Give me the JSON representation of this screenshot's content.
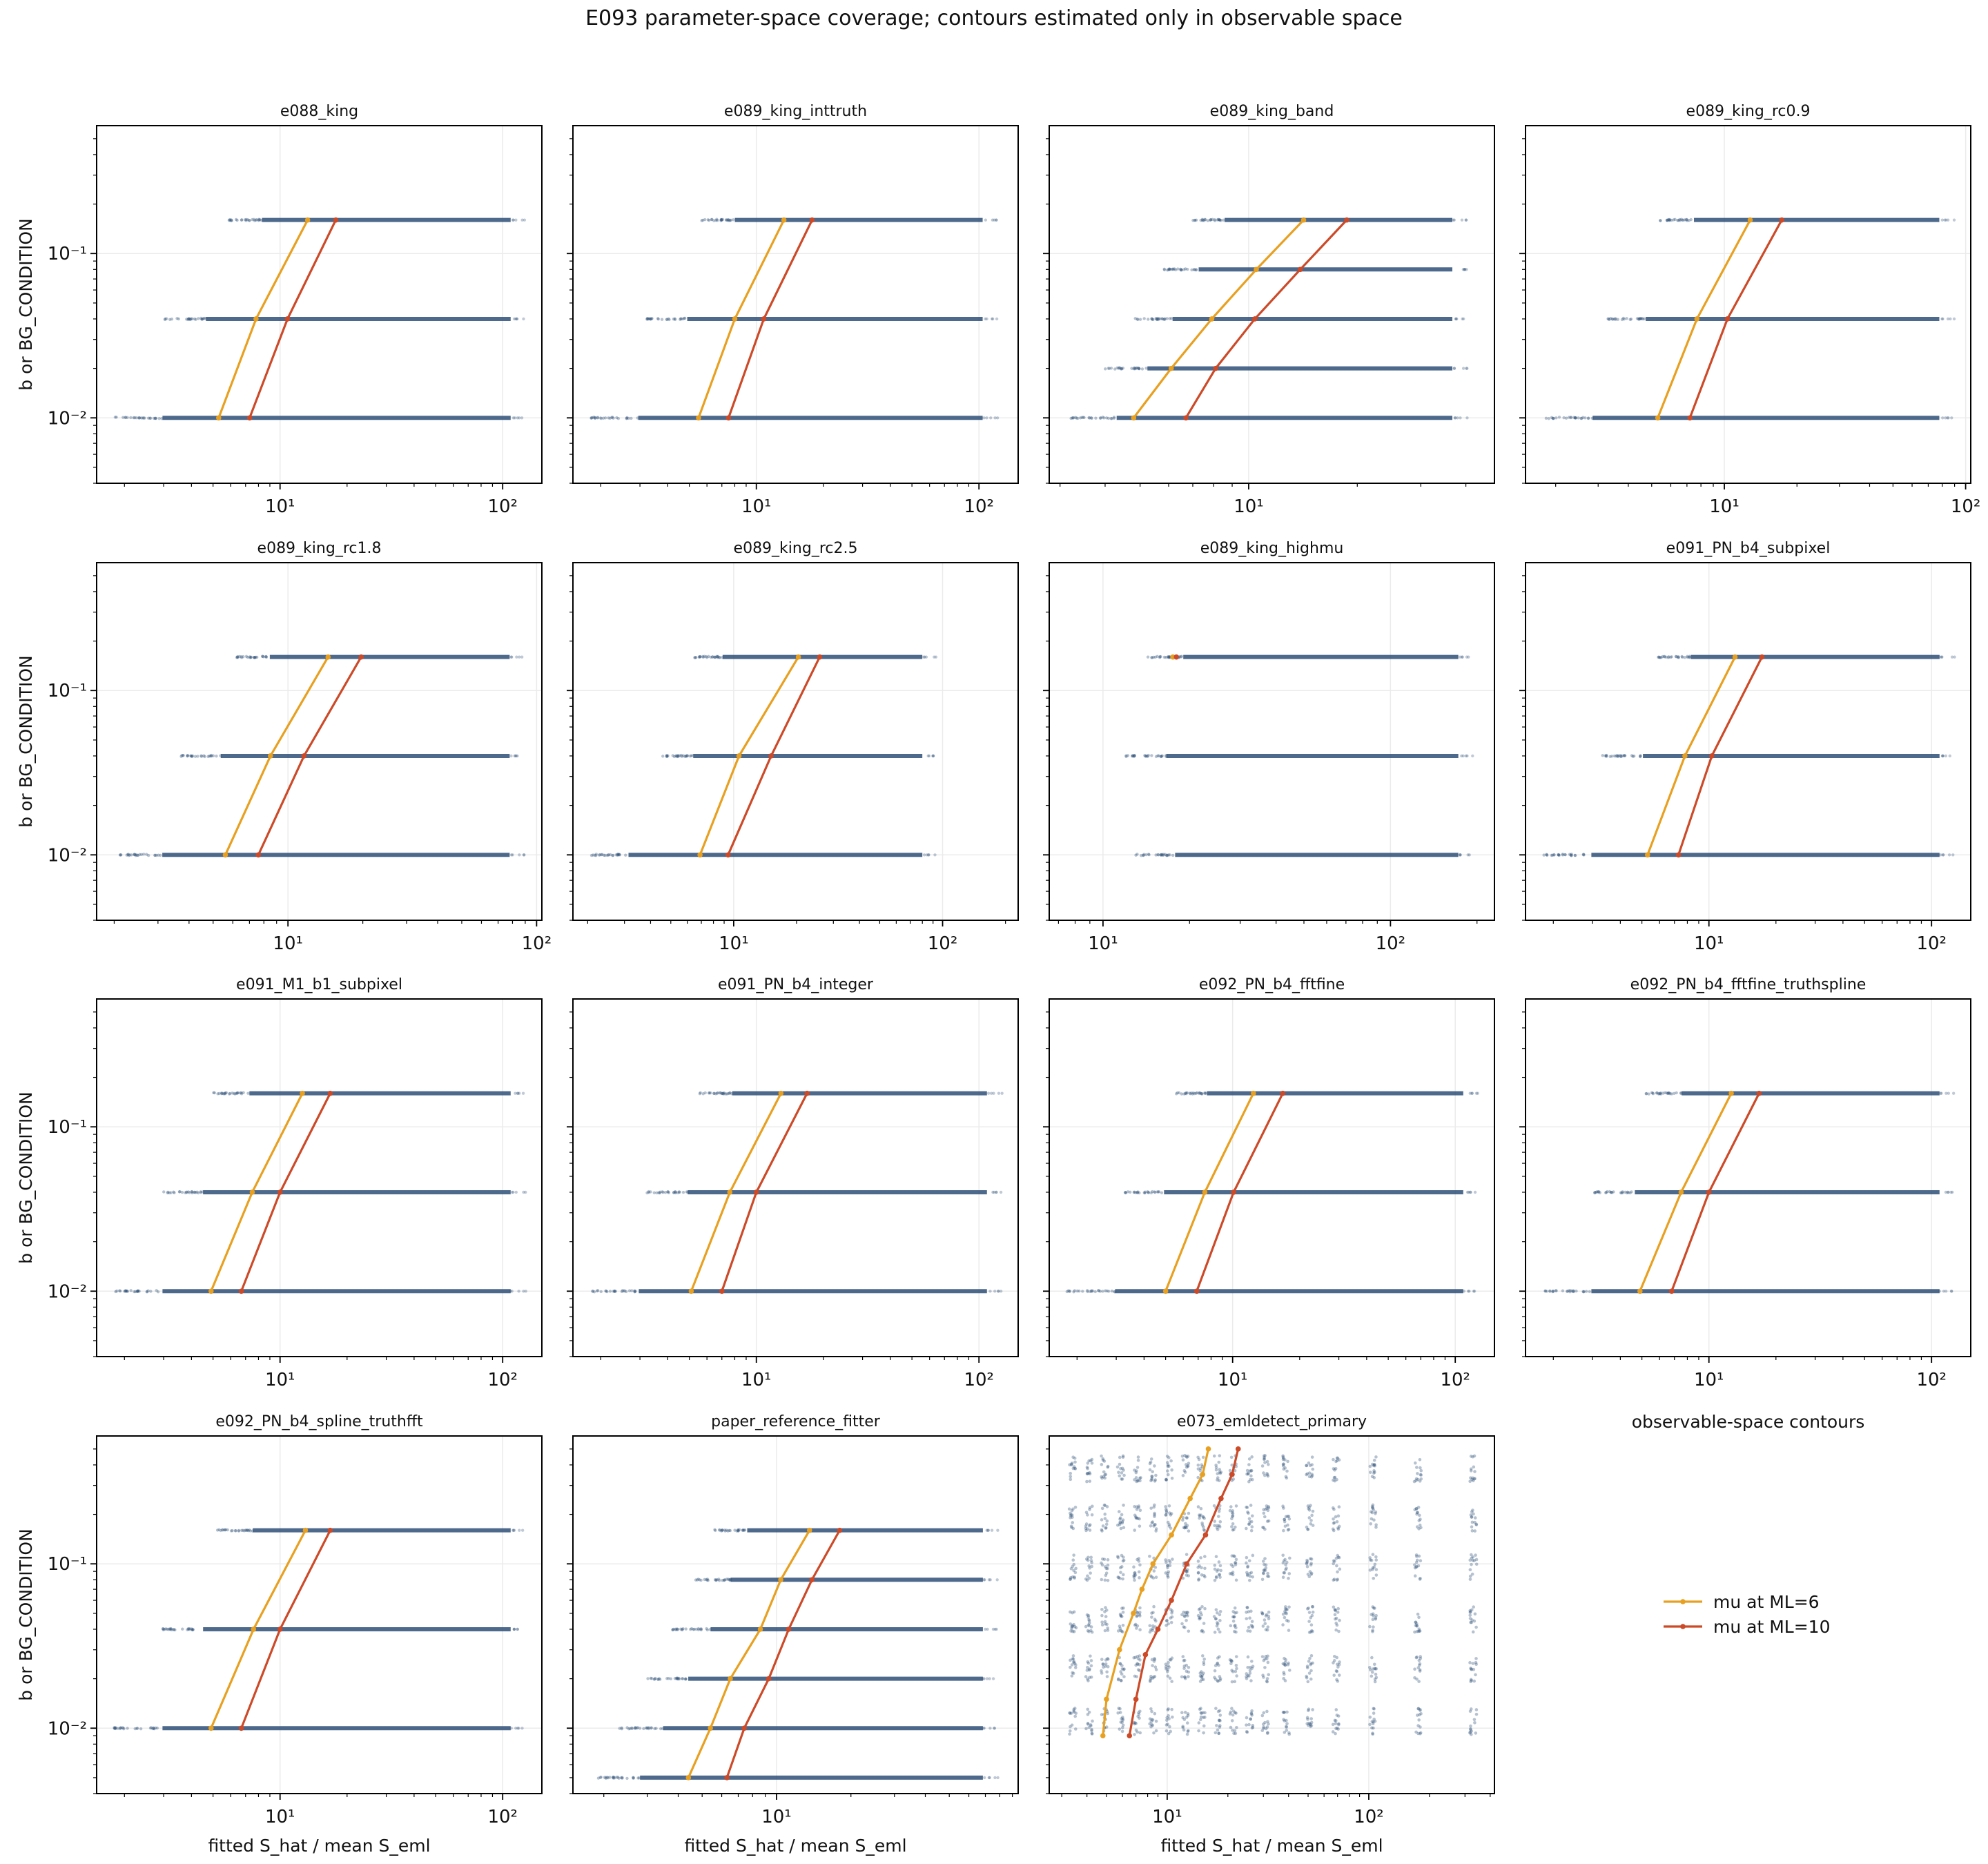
{
  "figure": {
    "title": "E093 parameter-space coverage; contours estimated only in observable space",
    "ylabel": "b or BG_CONDITION",
    "xlabel": "fitted S_hat / mean S_eml",
    "legend_panel_title": "observable-space contours"
  },
  "colors": {
    "points": "#2f4f78",
    "ml6": "#e8a020",
    "ml10": "#cc4a28",
    "grid": "#ebebeb"
  },
  "legend": [
    {
      "label": "mu at ML=6",
      "color": "#e8a020"
    },
    {
      "label": "mu at ML=10",
      "color": "#cc4a28"
    }
  ],
  "y_ticks": [
    {
      "value": 0.01,
      "label": "10⁻²"
    },
    {
      "value": 0.1,
      "label": "10⁻¹"
    }
  ],
  "chart_data": [
    {
      "type": "scatter",
      "title": "e088_king",
      "xlim": [
        1.5,
        150
      ],
      "ylim": [
        0.004,
        0.6
      ],
      "log_x": true,
      "log_y": true,
      "xticks": [
        {
          "value": 10,
          "label": "10¹"
        },
        {
          "value": 100,
          "label": "10²"
        }
      ],
      "bands": [
        {
          "y": 0.01,
          "x": [
            1.8,
            115
          ]
        },
        {
          "y": 0.04,
          "x": [
            3.0,
            115
          ]
        },
        {
          "y": 0.16,
          "x": [
            5.8,
            115
          ]
        }
      ],
      "series": [
        {
          "name": "mu at ML=6",
          "x": [
            5.3,
            7.8,
            13.3
          ],
          "y": [
            0.01,
            0.04,
            0.16
          ]
        },
        {
          "name": "mu at ML=10",
          "x": [
            7.3,
            10.8,
            17.8
          ],
          "y": [
            0.01,
            0.04,
            0.16
          ]
        }
      ]
    },
    {
      "type": "scatter",
      "title": "e089_king_inttruth",
      "xlim": [
        1.5,
        150
      ],
      "ylim": [
        0.004,
        0.6
      ],
      "log_x": true,
      "log_y": true,
      "xticks": [
        {
          "value": 10,
          "label": "10¹"
        },
        {
          "value": 100,
          "label": "10²"
        }
      ],
      "bands": [
        {
          "y": 0.01,
          "x": [
            1.8,
            110
          ]
        },
        {
          "y": 0.04,
          "x": [
            3.2,
            110
          ]
        },
        {
          "y": 0.16,
          "x": [
            5.6,
            110
          ]
        }
      ],
      "series": [
        {
          "name": "mu at ML=6",
          "x": [
            5.5,
            8.0,
            13.3
          ],
          "y": [
            0.01,
            0.04,
            0.16
          ]
        },
        {
          "name": "mu at ML=10",
          "x": [
            7.5,
            10.8,
            17.8
          ],
          "y": [
            0.01,
            0.04,
            0.16
          ]
        }
      ]
    },
    {
      "type": "scatter",
      "title": "e089_king_band",
      "xlim": [
        2.8,
        48
      ],
      "ylim": [
        0.004,
        0.6
      ],
      "log_x": true,
      "log_y": true,
      "xticks": [
        {
          "value": 10,
          "label": "10¹"
        }
      ],
      "bands": [
        {
          "y": 0.01,
          "x": [
            3.2,
            38
          ]
        },
        {
          "y": 0.02,
          "x": [
            4.0,
            38
          ]
        },
        {
          "y": 0.04,
          "x": [
            4.8,
            38
          ]
        },
        {
          "y": 0.08,
          "x": [
            5.8,
            38
          ]
        },
        {
          "y": 0.16,
          "x": [
            7.0,
            38
          ]
        }
      ],
      "series": [
        {
          "name": "mu at ML=6",
          "x": [
            4.8,
            6.1,
            7.9,
            10.5,
            14.2
          ],
          "y": [
            0.01,
            0.02,
            0.04,
            0.08,
            0.16
          ]
        },
        {
          "name": "mu at ML=10",
          "x": [
            6.7,
            8.1,
            10.4,
            13.9,
            18.7
          ],
          "y": [
            0.01,
            0.02,
            0.04,
            0.08,
            0.16
          ]
        }
      ]
    },
    {
      "type": "scatter",
      "title": "e089_king_rc0.9",
      "xlim": [
        1.5,
        105
      ],
      "ylim": [
        0.004,
        0.6
      ],
      "log_x": true,
      "log_y": true,
      "xticks": [
        {
          "value": 10,
          "label": "10¹"
        },
        {
          "value": 100,
          "label": "10²"
        }
      ],
      "bands": [
        {
          "y": 0.01,
          "x": [
            1.8,
            82
          ]
        },
        {
          "y": 0.04,
          "x": [
            3.2,
            82
          ]
        },
        {
          "y": 0.16,
          "x": [
            5.4,
            82
          ]
        }
      ],
      "series": [
        {
          "name": "mu at ML=6",
          "x": [
            5.3,
            7.7,
            12.8
          ],
          "y": [
            0.01,
            0.04,
            0.16
          ]
        },
        {
          "name": "mu at ML=10",
          "x": [
            7.2,
            10.3,
            17.3
          ],
          "y": [
            0.01,
            0.04,
            0.16
          ]
        }
      ]
    },
    {
      "type": "scatter",
      "title": "e089_king_rc1.8",
      "xlim": [
        1.7,
        105
      ],
      "ylim": [
        0.004,
        0.6
      ],
      "log_x": true,
      "log_y": true,
      "xticks": [
        {
          "value": 10,
          "label": "10¹"
        },
        {
          "value": 100,
          "label": "10²"
        }
      ],
      "bands": [
        {
          "y": 0.01,
          "x": [
            2.0,
            82
          ]
        },
        {
          "y": 0.04,
          "x": [
            3.7,
            82
          ]
        },
        {
          "y": 0.16,
          "x": [
            6.2,
            82
          ]
        }
      ],
      "series": [
        {
          "name": "mu at ML=6",
          "x": [
            5.6,
            8.5,
            14.5
          ],
          "y": [
            0.01,
            0.04,
            0.16
          ]
        },
        {
          "name": "mu at ML=10",
          "x": [
            7.6,
            11.6,
            19.7
          ],
          "y": [
            0.01,
            0.04,
            0.16
          ]
        }
      ]
    },
    {
      "type": "scatter",
      "title": "e089_king_rc2.5",
      "xlim": [
        1.7,
        230
      ],
      "ylim": [
        0.004,
        0.6
      ],
      "log_x": true,
      "log_y": true,
      "xticks": [
        {
          "value": 10,
          "label": "10¹"
        },
        {
          "value": 100,
          "label": "10²"
        }
      ],
      "bands": [
        {
          "y": 0.01,
          "x": [
            2.0,
            85
          ]
        },
        {
          "y": 0.04,
          "x": [
            4.5,
            85
          ]
        },
        {
          "y": 0.16,
          "x": [
            6.5,
            85
          ]
        }
      ],
      "series": [
        {
          "name": "mu at ML=6",
          "x": [
            6.9,
            10.6,
            20.4
          ],
          "y": [
            0.01,
            0.04,
            0.16
          ]
        },
        {
          "name": "mu at ML=10",
          "x": [
            9.4,
            15.1,
            25.8
          ],
          "y": [
            0.01,
            0.04,
            0.16
          ]
        }
      ]
    },
    {
      "type": "scatter",
      "title": "e089_king_highmu",
      "xlim": [
        6.5,
        230
      ],
      "ylim": [
        0.004,
        0.6
      ],
      "log_x": true,
      "log_y": true,
      "xticks": [
        {
          "value": 10,
          "label": "10¹"
        },
        {
          "value": 100,
          "label": "10²"
        }
      ],
      "bands": [
        {
          "y": 0.01,
          "x": [
            13,
            180
          ]
        },
        {
          "y": 0.04,
          "x": [
            12,
            180
          ]
        },
        {
          "y": 0.16,
          "x": [
            14,
            180
          ]
        }
      ],
      "series": [
        {
          "name": "mu at ML=6",
          "x": [
            17.5
          ],
          "y": [
            0.16
          ]
        },
        {
          "name": "mu at ML=10",
          "x": [
            18.0
          ],
          "y": [
            0.16
          ]
        }
      ]
    },
    {
      "type": "scatter",
      "title": "e091_PN_b4_subpixel",
      "xlim": [
        1.5,
        150
      ],
      "ylim": [
        0.004,
        0.6
      ],
      "log_x": true,
      "log_y": true,
      "xticks": [
        {
          "value": 10,
          "label": "10¹"
        },
        {
          "value": 100,
          "label": "10²"
        }
      ],
      "bands": [
        {
          "y": 0.01,
          "x": [
            1.8,
            115
          ]
        },
        {
          "y": 0.04,
          "x": [
            3.3,
            115
          ]
        },
        {
          "y": 0.16,
          "x": [
            5.8,
            115
          ]
        }
      ],
      "series": [
        {
          "name": "mu at ML=6",
          "x": [
            5.3,
            7.8,
            13.1
          ],
          "y": [
            0.01,
            0.04,
            0.16
          ]
        },
        {
          "name": "mu at ML=10",
          "x": [
            7.3,
            10.3,
            17.3
          ],
          "y": [
            0.01,
            0.04,
            0.16
          ]
        }
      ]
    },
    {
      "type": "scatter",
      "title": "e091_M1_b1_subpixel",
      "xlim": [
        1.5,
        150
      ],
      "ylim": [
        0.004,
        0.6
      ],
      "log_x": true,
      "log_y": true,
      "xticks": [
        {
          "value": 10,
          "label": "10¹"
        },
        {
          "value": 100,
          "label": "10²"
        }
      ],
      "bands": [
        {
          "y": 0.01,
          "x": [
            1.8,
            115
          ]
        },
        {
          "y": 0.04,
          "x": [
            2.9,
            115
          ]
        },
        {
          "y": 0.16,
          "x": [
            5.0,
            115
          ]
        }
      ],
      "series": [
        {
          "name": "mu at ML=6",
          "x": [
            4.9,
            7.5,
            12.6
          ],
          "y": [
            0.01,
            0.04,
            0.16
          ]
        },
        {
          "name": "mu at ML=10",
          "x": [
            6.7,
            10.0,
            16.8
          ],
          "y": [
            0.01,
            0.04,
            0.16
          ]
        }
      ]
    },
    {
      "type": "scatter",
      "title": "e091_PN_b4_integer",
      "xlim": [
        1.5,
        150
      ],
      "ylim": [
        0.004,
        0.6
      ],
      "log_x": true,
      "log_y": true,
      "xticks": [
        {
          "value": 10,
          "label": "10¹"
        },
        {
          "value": 100,
          "label": "10²"
        }
      ],
      "bands": [
        {
          "y": 0.01,
          "x": [
            1.8,
            115
          ]
        },
        {
          "y": 0.04,
          "x": [
            3.2,
            115
          ]
        },
        {
          "y": 0.16,
          "x": [
            5.4,
            115
          ]
        }
      ],
      "series": [
        {
          "name": "mu at ML=6",
          "x": [
            5.1,
            7.6,
            12.9
          ],
          "y": [
            0.01,
            0.04,
            0.16
          ]
        },
        {
          "name": "mu at ML=10",
          "x": [
            7.0,
            10.0,
            16.9
          ],
          "y": [
            0.01,
            0.04,
            0.16
          ]
        }
      ]
    },
    {
      "type": "scatter",
      "title": "e092_PN_b4_fftfine",
      "xlim": [
        1.5,
        150
      ],
      "ylim": [
        0.004,
        0.6
      ],
      "log_x": true,
      "log_y": true,
      "xticks": [
        {
          "value": 10,
          "label": "10¹"
        },
        {
          "value": 100,
          "label": "10²"
        }
      ],
      "bands": [
        {
          "y": 0.01,
          "x": [
            1.8,
            115
          ]
        },
        {
          "y": 0.04,
          "x": [
            3.2,
            115
          ]
        },
        {
          "y": 0.16,
          "x": [
            5.3,
            115
          ]
        }
      ],
      "series": [
        {
          "name": "mu at ML=6",
          "x": [
            5.0,
            7.5,
            12.4
          ],
          "y": [
            0.01,
            0.04,
            0.16
          ]
        },
        {
          "name": "mu at ML=10",
          "x": [
            6.9,
            10.1,
            16.8
          ],
          "y": [
            0.01,
            0.04,
            0.16
          ]
        }
      ]
    },
    {
      "type": "scatter",
      "title": "e092_PN_b4_fftfine_truthspline",
      "xlim": [
        1.5,
        150
      ],
      "ylim": [
        0.004,
        0.6
      ],
      "log_x": true,
      "log_y": true,
      "xticks": [
        {
          "value": 10,
          "label": "10¹"
        },
        {
          "value": 100,
          "label": "10²"
        }
      ],
      "bands": [
        {
          "y": 0.01,
          "x": [
            1.8,
            115
          ]
        },
        {
          "y": 0.04,
          "x": [
            3.0,
            115
          ]
        },
        {
          "y": 0.16,
          "x": [
            5.2,
            115
          ]
        }
      ],
      "series": [
        {
          "name": "mu at ML=6",
          "x": [
            4.9,
            7.5,
            12.6
          ],
          "y": [
            0.01,
            0.04,
            0.16
          ]
        },
        {
          "name": "mu at ML=10",
          "x": [
            6.8,
            10.0,
            16.8
          ],
          "y": [
            0.01,
            0.04,
            0.16
          ]
        }
      ]
    },
    {
      "type": "scatter",
      "title": "e092_PN_b4_spline_truthfft",
      "xlim": [
        1.5,
        150
      ],
      "ylim": [
        0.004,
        0.6
      ],
      "log_x": true,
      "log_y": true,
      "xticks": [
        {
          "value": 10,
          "label": "10¹"
        },
        {
          "value": 100,
          "label": "10²"
        }
      ],
      "bands": [
        {
          "y": 0.01,
          "x": [
            1.8,
            115
          ]
        },
        {
          "y": 0.04,
          "x": [
            2.9,
            115
          ]
        },
        {
          "y": 0.16,
          "x": [
            5.2,
            115
          ]
        }
      ],
      "series": [
        {
          "name": "mu at ML=6",
          "x": [
            4.9,
            7.6,
            13.0
          ],
          "y": [
            0.01,
            0.04,
            0.16
          ]
        },
        {
          "name": "mu at ML=10",
          "x": [
            6.7,
            10.0,
            16.8
          ],
          "y": [
            0.01,
            0.04,
            0.16
          ]
        }
      ]
    },
    {
      "type": "scatter",
      "title": "paper_reference_fitter",
      "xlim": [
        1.5,
        95
      ],
      "ylim": [
        0.004,
        0.6
      ],
      "log_x": true,
      "log_y": true,
      "xticks": [
        {
          "value": 10,
          "label": "10¹"
        }
      ],
      "bands": [
        {
          "y": 0.005,
          "x": [
            1.8,
            72
          ]
        },
        {
          "y": 0.01,
          "x": [
            2.3,
            72
          ]
        },
        {
          "y": 0.02,
          "x": [
            3.0,
            72
          ]
        },
        {
          "y": 0.04,
          "x": [
            3.8,
            72
          ]
        },
        {
          "y": 0.08,
          "x": [
            4.7,
            72
          ]
        },
        {
          "y": 0.16,
          "x": [
            5.6,
            72
          ]
        }
      ],
      "series": [
        {
          "name": "mu at ML=6",
          "x": [
            4.4,
            5.4,
            6.5,
            8.6,
            10.4,
            13.6
          ],
          "y": [
            0.005,
            0.01,
            0.02,
            0.04,
            0.08,
            0.16
          ]
        },
        {
          "name": "mu at ML=10",
          "x": [
            6.3,
            7.4,
            9.3,
            11.2,
            13.9,
            18.0
          ],
          "y": [
            0.005,
            0.01,
            0.02,
            0.04,
            0.08,
            0.16
          ]
        }
      ]
    },
    {
      "type": "scatter",
      "title": "e073_emldetect_primary",
      "xlim": [
        2.6,
        420
      ],
      "ylim": [
        0.004,
        0.6
      ],
      "log_x": true,
      "log_y": true,
      "xticks": [
        {
          "value": 10,
          "label": "10¹"
        },
        {
          "value": 100,
          "label": "10²"
        }
      ],
      "columns_x": [
        3.4,
        4.1,
        4.9,
        5.9,
        7.1,
        8.5,
        10.2,
        12.3,
        14.8,
        17.8,
        21.3,
        25.6,
        30.7,
        39,
        51,
        69,
        105,
        175,
        330
      ],
      "rows_y": [
        0.011,
        0.023,
        0.046,
        0.095,
        0.19,
        0.38
      ],
      "series": [
        {
          "name": "mu at ML=6",
          "x": [
            4.8,
            5.0,
            5.8,
            6.8,
            7.5,
            8.5,
            10.5,
            13.0,
            15.0,
            16.0
          ],
          "y": [
            0.009,
            0.015,
            0.03,
            0.05,
            0.07,
            0.1,
            0.15,
            0.25,
            0.35,
            0.5
          ]
        },
        {
          "name": "mu at ML=10",
          "x": [
            6.5,
            7.0,
            7.8,
            9.0,
            10.5,
            12.5,
            15.5,
            18.5,
            21.0,
            22.5
          ],
          "y": [
            0.009,
            0.015,
            0.028,
            0.04,
            0.06,
            0.1,
            0.15,
            0.25,
            0.35,
            0.5
          ]
        }
      ]
    }
  ]
}
